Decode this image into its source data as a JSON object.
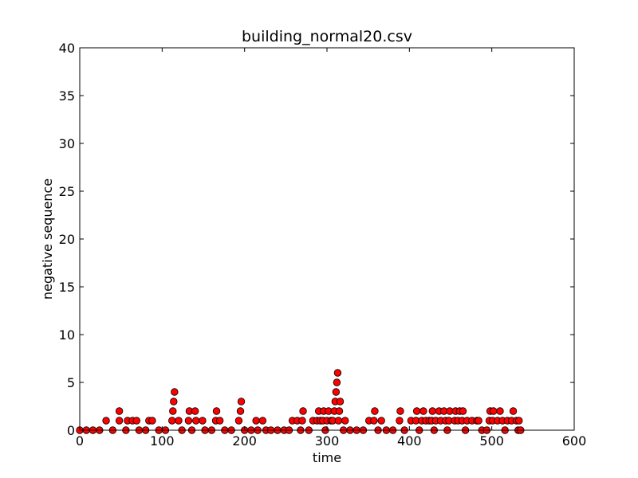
{
  "chart_data": {
    "type": "scatter",
    "title": "building_normal20.csv",
    "xlabel": "time",
    "ylabel": "negative sequence",
    "xlim": [
      0,
      600
    ],
    "ylim": [
      0,
      40
    ],
    "xticks": [
      0,
      100,
      200,
      300,
      400,
      500,
      600
    ],
    "yticks": [
      0,
      5,
      10,
      15,
      20,
      25,
      30,
      35,
      40
    ],
    "grid": false,
    "legend": "none",
    "marker_color": "#ff0000",
    "marker_edge": "#000000",
    "series": [
      {
        "points": [
          [
            32,
            1
          ],
          [
            48,
            1
          ],
          [
            48,
            2
          ],
          [
            58,
            1
          ],
          [
            64,
            1
          ],
          [
            69,
            1
          ],
          [
            84,
            1
          ],
          [
            88,
            1
          ],
          [
            112,
            1
          ],
          [
            113,
            2
          ],
          [
            114,
            3
          ],
          [
            115,
            4
          ],
          [
            120,
            1
          ],
          [
            132,
            1
          ],
          [
            133,
            2
          ],
          [
            140,
            2
          ],
          [
            141,
            1
          ],
          [
            149,
            1
          ],
          [
            165,
            1
          ],
          [
            166,
            2
          ],
          [
            170,
            1
          ],
          [
            193,
            1
          ],
          [
            195,
            2
          ],
          [
            196,
            3
          ],
          [
            214,
            1
          ],
          [
            222,
            1
          ],
          [
            258,
            1
          ],
          [
            264,
            1
          ],
          [
            270,
            1
          ],
          [
            271,
            2
          ],
          [
            283,
            1
          ],
          [
            288,
            1
          ],
          [
            290,
            2
          ],
          [
            292,
            1
          ],
          [
            295,
            1
          ],
          [
            296,
            2
          ],
          [
            300,
            1
          ],
          [
            302,
            2
          ],
          [
            305,
            1
          ],
          [
            307,
            1
          ],
          [
            309,
            2
          ],
          [
            310,
            3
          ],
          [
            311,
            4
          ],
          [
            312,
            5
          ],
          [
            313,
            6
          ],
          [
            314,
            1
          ],
          [
            315,
            2
          ],
          [
            316,
            3
          ],
          [
            322,
            1
          ],
          [
            351,
            1
          ],
          [
            357,
            1
          ],
          [
            358,
            2
          ],
          [
            366,
            1
          ],
          [
            388,
            1
          ],
          [
            389,
            2
          ],
          [
            402,
            1
          ],
          [
            408,
            1
          ],
          [
            409,
            2
          ],
          [
            415,
            1
          ],
          [
            417,
            2
          ],
          [
            420,
            1
          ],
          [
            424,
            1
          ],
          [
            427,
            1
          ],
          [
            428,
            2
          ],
          [
            432,
            1
          ],
          [
            436,
            2
          ],
          [
            438,
            1
          ],
          [
            442,
            2
          ],
          [
            444,
            1
          ],
          [
            448,
            1
          ],
          [
            449,
            2
          ],
          [
            455,
            1
          ],
          [
            456,
            2
          ],
          [
            459,
            1
          ],
          [
            461,
            2
          ],
          [
            464,
            1
          ],
          [
            465,
            2
          ],
          [
            470,
            1
          ],
          [
            476,
            1
          ],
          [
            482,
            1
          ],
          [
            484,
            1
          ],
          [
            497,
            1
          ],
          [
            498,
            2
          ],
          [
            501,
            1
          ],
          [
            502,
            2
          ],
          [
            507,
            1
          ],
          [
            510,
            2
          ],
          [
            513,
            1
          ],
          [
            519,
            1
          ],
          [
            524,
            1
          ],
          [
            526,
            2
          ],
          [
            530,
            1
          ],
          [
            533,
            1
          ],
          [
            0,
            0
          ],
          [
            8,
            0
          ],
          [
            16,
            0
          ],
          [
            24,
            0
          ],
          [
            40,
            0
          ],
          [
            56,
            0
          ],
          [
            72,
            0
          ],
          [
            80,
            0
          ],
          [
            96,
            0
          ],
          [
            104,
            0
          ],
          [
            124,
            0
          ],
          [
            136,
            0
          ],
          [
            152,
            0
          ],
          [
            160,
            0
          ],
          [
            176,
            0
          ],
          [
            184,
            0
          ],
          [
            200,
            0
          ],
          [
            208,
            0
          ],
          [
            216,
            0
          ],
          [
            226,
            0
          ],
          [
            232,
            0
          ],
          [
            240,
            0
          ],
          [
            248,
            0
          ],
          [
            254,
            0
          ],
          [
            268,
            0
          ],
          [
            278,
            0
          ],
          [
            298,
            0
          ],
          [
            320,
            0
          ],
          [
            328,
            0
          ],
          [
            336,
            0
          ],
          [
            344,
            0
          ],
          [
            362,
            0
          ],
          [
            372,
            0
          ],
          [
            380,
            0
          ],
          [
            394,
            0
          ],
          [
            412,
            0
          ],
          [
            430,
            0
          ],
          [
            446,
            0
          ],
          [
            468,
            0
          ],
          [
            488,
            0
          ],
          [
            494,
            0
          ],
          [
            516,
            0
          ],
          [
            532,
            0
          ],
          [
            535,
            0
          ]
        ]
      }
    ]
  }
}
